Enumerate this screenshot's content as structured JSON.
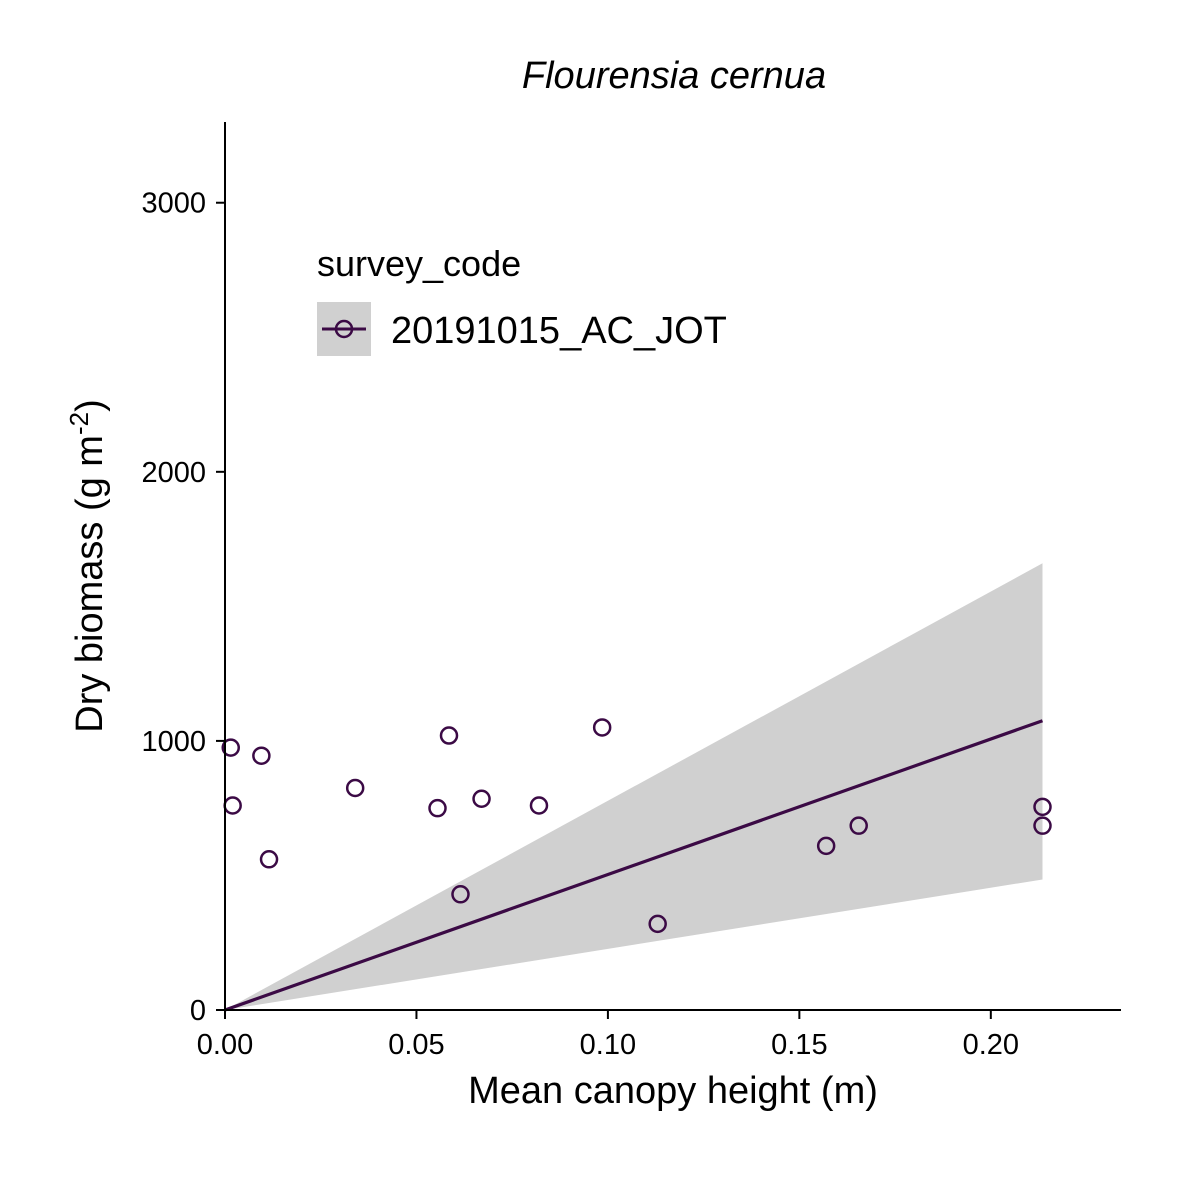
{
  "chart_data": {
    "type": "scatter",
    "title": "Flourensia cernua",
    "xlabel": "Mean canopy height (m)",
    "ylabel_main": "Dry biomass (g m",
    "ylabel_sup": "-2",
    "ylabel_close": ")",
    "xlim": [
      0,
      0.234
    ],
    "ylim": [
      0,
      3300
    ],
    "x_ticks": [
      0,
      0.05,
      0.1,
      0.15,
      0.2
    ],
    "x_tick_labels": [
      "0.00",
      "0.05",
      "0.10",
      "0.15",
      "0.20"
    ],
    "y_ticks": [
      0,
      1000,
      2000,
      3000
    ],
    "y_tick_labels": [
      "0",
      "1000",
      "2000",
      "3000"
    ],
    "grid": false,
    "legend": {
      "title": "survey_code",
      "entries": [
        "20191015_AC_JOT"
      ],
      "placement": "top-left"
    },
    "colors": {
      "series": "#3b0a45",
      "band": "#d0d0d0",
      "legend_key_bg": "#d0d0d0"
    },
    "series": [
      {
        "name": "20191015_AC_JOT",
        "points": [
          {
            "x": 0.0015,
            "y": 975
          },
          {
            "x": 0.002,
            "y": 760
          },
          {
            "x": 0.0095,
            "y": 945
          },
          {
            "x": 0.0115,
            "y": 560
          },
          {
            "x": 0.034,
            "y": 825
          },
          {
            "x": 0.0555,
            "y": 750
          },
          {
            "x": 0.0585,
            "y": 1020
          },
          {
            "x": 0.0615,
            "y": 430
          },
          {
            "x": 0.067,
            "y": 785
          },
          {
            "x": 0.082,
            "y": 760
          },
          {
            "x": 0.0985,
            "y": 1050
          },
          {
            "x": 0.113,
            "y": 320
          },
          {
            "x": 0.157,
            "y": 610
          },
          {
            "x": 0.1655,
            "y": 685
          },
          {
            "x": 0.2135,
            "y": 755
          },
          {
            "x": 0.2135,
            "y": 685
          }
        ]
      }
    ],
    "fit": {
      "x": [
        0,
        0.2135
      ],
      "y": [
        0,
        1075
      ],
      "upper": [
        0,
        1660
      ],
      "lower": [
        0,
        485
      ]
    }
  }
}
